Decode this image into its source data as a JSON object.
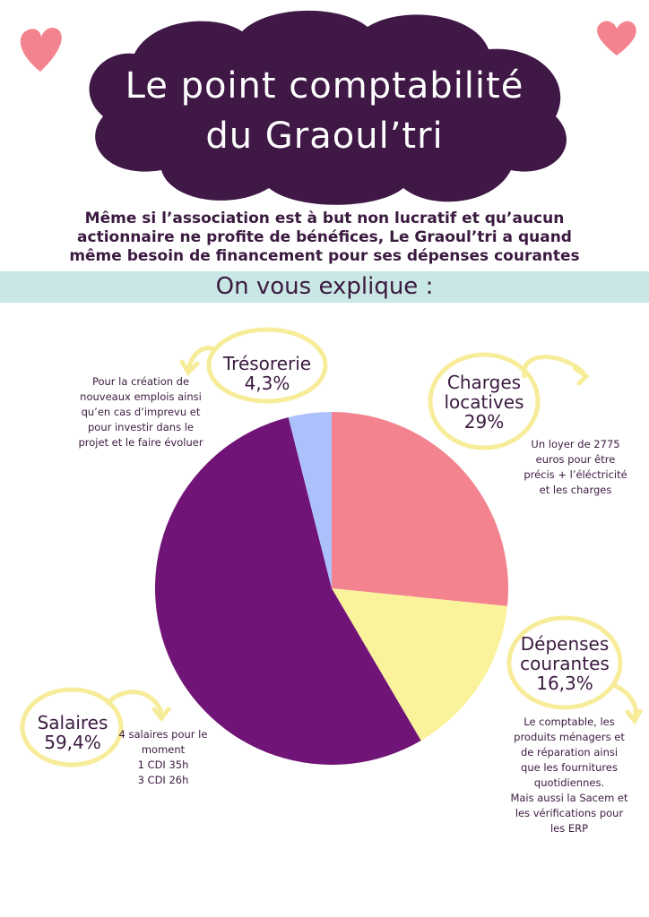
{
  "header": {
    "title_line1": "Le point comptabilité",
    "title_line2": "du Graoul’tri",
    "intro_line1": "Même si l’association est à but non lucratif et qu’aucun",
    "intro_line2": "actionnaire ne profite de bénéfices, Le Graoul’tri a quand",
    "intro_line3": "même besoin de financement pour ses dépenses courantes",
    "subtitle": "On vous explique :"
  },
  "colors": {
    "cloud": "#3f1846",
    "heart": "#f3848f",
    "band": "#c9e7e5",
    "circle": "#f7ec9a",
    "text": "#3b1a40"
  },
  "icons": [
    "heart-icon",
    "heart-icon",
    "curved-arrow-icon"
  ],
  "chart_data": {
    "type": "pie",
    "slices": [
      {
        "label": "Charges locatives",
        "value_label": "29%",
        "value": 29,
        "color": "#f3848f",
        "description": [
          "Un loyer de 2775",
          "euros pour être",
          "précis + l’éléctricité",
          "et les charges"
        ]
      },
      {
        "label": "Dépenses courantes",
        "value_label": "16,3%",
        "value": 16.3,
        "color": "#fbf39b",
        "description": [
          "Le comptable, les",
          "produits ménagers et",
          "de réparation ainsi",
          "que les fournitures",
          "quotidiennes.",
          "Mais aussi la Sacem et",
          "les vérifications pour",
          "les ERP"
        ]
      },
      {
        "label": "Salaires",
        "value_label": "59,4%",
        "value": 59.4,
        "color": "#711477",
        "description": [
          "4 salaires pour le",
          "moment",
          "1 CDI 35h",
          "3 CDI 26h"
        ]
      },
      {
        "label": "Trésorerie",
        "value_label": "4,3%",
        "value": 4.3,
        "color": "#acc1fb",
        "description": [
          "Pour la création de",
          "nouveaux emplois  ainsi",
          "qu’en cas d’imprevu et",
          "pour investir dans le",
          "projet et le faire évoluer"
        ]
      }
    ]
  }
}
